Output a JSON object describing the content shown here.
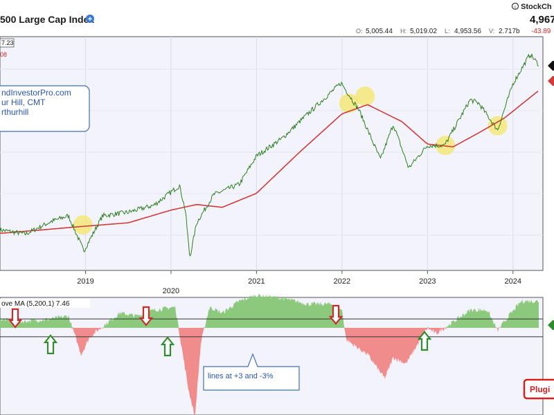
{
  "header": {
    "title": "500 Large Cap Index",
    "brand": "StockCh",
    "last_price": "4,967",
    "ohlc": [
      {
        "label": "O:",
        "value": "5,005.44"
      },
      {
        "label": "H:",
        "value": "5,019.02"
      },
      {
        "label": "L:",
        "value": "4,953.56"
      },
      {
        "label": "V:",
        "value": "2.717b"
      }
    ],
    "change": "-43.89",
    "tag_top": "7.23",
    "tag_bottom": "08"
  },
  "annotation_box": {
    "lines": [
      "ndInvestorPro.com",
      "ur Hill, CMT",
      "rthurhill"
    ]
  },
  "indicator": {
    "label": "ove MA (5,200,1) 7.46",
    "callout": "lines at +3 and -3%"
  },
  "plugin_button": {
    "label": "Plugi"
  },
  "colors": {
    "price": "#2e7d1f",
    "ma200": "#d23a3a",
    "positive_fill": "#8cc97c",
    "negative_fill": "#f08c8c",
    "highlight": "#f5e66a",
    "arrow_down": "#cc2a2a",
    "arrow_up": "#2e8b2e",
    "callout_border": "#3d6fb4"
  },
  "chart_data": [
    {
      "type": "line",
      "title": "500 Large Cap Index",
      "x_ticks": [
        "2019",
        "2020",
        "2021",
        "2022",
        "2023",
        "2024"
      ],
      "series": [
        {
          "x": [
            2018.0,
            2018.3,
            2018.6,
            2018.8,
            2018.98,
            2019.2,
            2019.5,
            2019.8,
            2020.1,
            2020.17,
            2020.22,
            2020.3,
            2020.5,
            2020.8,
            2021.0,
            2021.3,
            2021.6,
            2021.99,
            2022.2,
            2022.45,
            2022.6,
            2022.78,
            2023.0,
            2023.2,
            2023.5,
            2023.6,
            2023.82,
            2024.0,
            2024.2,
            2024.3
          ],
          "y": [
            2700,
            2640,
            2820,
            2900,
            2400,
            2900,
            2950,
            3050,
            3330,
            2960,
            2300,
            2800,
            3200,
            3350,
            3750,
            4000,
            4350,
            4790,
            4400,
            3700,
            4200,
            3580,
            3900,
            3900,
            4550,
            4500,
            4120,
            4780,
            5200,
            5050
          ]
        },
        {
          "x": [
            2018.0,
            2018.5,
            2018.98,
            2019.5,
            2020.0,
            2020.3,
            2020.6,
            2021.0,
            2021.5,
            2022.0,
            2022.3,
            2022.7,
            2023.0,
            2023.3,
            2023.6,
            2023.9,
            2024.3
          ],
          "y": [
            2650,
            2700,
            2750,
            2800,
            2980,
            3060,
            3020,
            3220,
            3800,
            4350,
            4480,
            4240,
            3920,
            3880,
            4080,
            4290,
            4680
          ]
        }
      ],
      "annotations": [
        "highlight circles near the 200-day average crossings"
      ]
    },
    {
      "type": "area",
      "title": "ove MA (5,200,1) 7.46",
      "x_ticks": [
        "2019",
        "2020",
        "2021",
        "2022",
        "2023",
        "2024"
      ],
      "reference_lines": [
        3,
        -3
      ],
      "series": [
        {
          "x": [
            2018.0,
            2018.2,
            2018.6,
            2018.8,
            2018.95,
            2019.05,
            2019.4,
            2019.6,
            2019.8,
            2020.05,
            2020.2,
            2020.28,
            2020.35,
            2020.45,
            2020.6,
            2020.8,
            2021.0,
            2021.3,
            2021.6,
            2021.9,
            2022.0,
            2022.05,
            2022.3,
            2022.5,
            2022.6,
            2022.75,
            2023.0,
            2023.1,
            2023.3,
            2023.5,
            2023.7,
            2023.82,
            2023.95,
            2024.1,
            2024.3
          ],
          "y": [
            3,
            2,
            3,
            4,
            -9,
            -3,
            5,
            4,
            6,
            7,
            -20,
            -30,
            -5,
            7,
            5,
            9,
            11,
            10,
            8,
            8,
            6,
            -4,
            -9,
            -17,
            -10,
            -12,
            0,
            -2,
            2,
            6,
            6,
            -1,
            4,
            9,
            9
          ]
        }
      ]
    }
  ]
}
